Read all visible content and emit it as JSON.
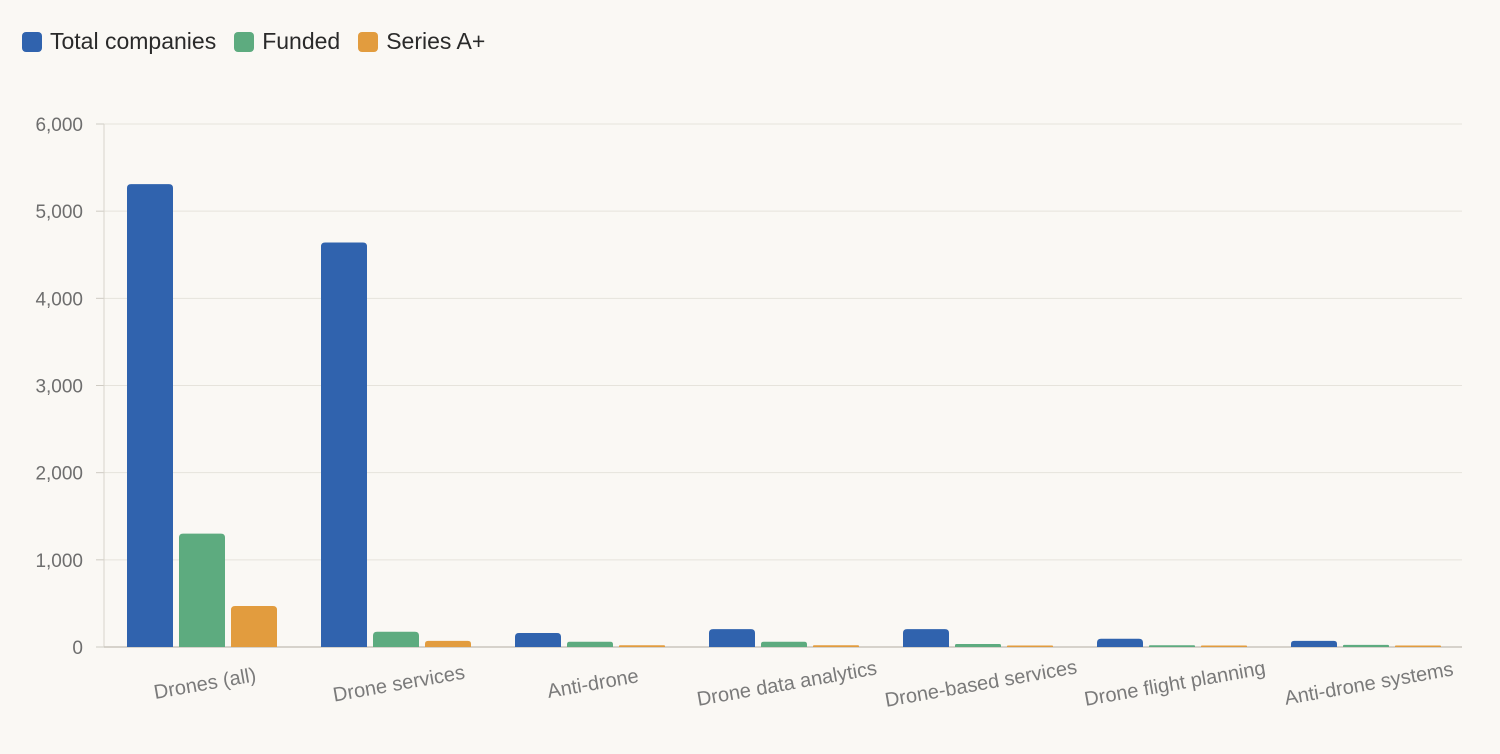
{
  "chart_data": {
    "type": "bar",
    "categories": [
      "Drones (all)",
      "Drone services",
      "Anti-drone",
      "Drone data analytics",
      "Drone-based services",
      "Drone flight planning",
      "Anti-drone systems"
    ],
    "series": [
      {
        "name": "Total companies",
        "color": "#3063ae",
        "values": [
          5310,
          4640,
          160,
          205,
          205,
          95,
          70
        ]
      },
      {
        "name": "Funded",
        "color": "#5dab7f",
        "values": [
          1300,
          175,
          60,
          60,
          35,
          20,
          25
        ]
      },
      {
        "name": "Series A+",
        "color": "#e29c3e",
        "values": [
          470,
          70,
          20,
          20,
          8,
          5,
          5
        ]
      }
    ],
    "ylim": [
      0,
      6000
    ],
    "yticks": [
      0,
      1000,
      2000,
      3000,
      4000,
      5000,
      6000
    ],
    "ytick_labels": [
      "0",
      "1,000",
      "2,000",
      "3,000",
      "4,000",
      "5,000",
      "6,000"
    ],
    "grid": true,
    "legend_position": "top-left"
  }
}
